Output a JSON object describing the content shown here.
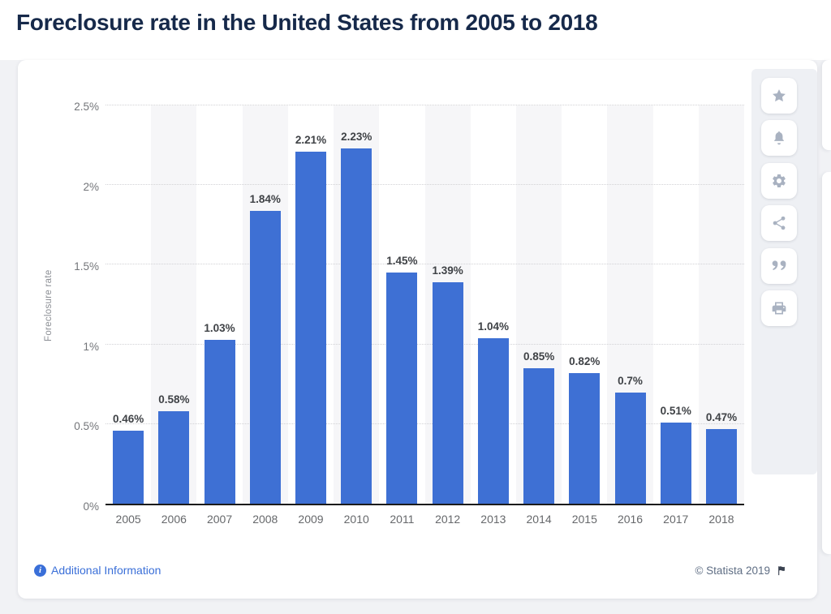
{
  "page": {
    "title": "Foreclosure rate in the United States from 2005 to 2018"
  },
  "chart_data": {
    "type": "bar",
    "title": "Foreclosure rate in the United States from 2005 to 2018",
    "categories": [
      "2005",
      "2006",
      "2007",
      "2008",
      "2009",
      "2010",
      "2011",
      "2012",
      "2013",
      "2014",
      "2015",
      "2016",
      "2017",
      "2018"
    ],
    "values": [
      0.46,
      0.58,
      1.03,
      1.84,
      2.21,
      2.23,
      1.45,
      1.39,
      1.04,
      0.85,
      0.82,
      0.7,
      0.51,
      0.47
    ],
    "value_labels": [
      "0.46%",
      "0.58%",
      "1.03%",
      "1.84%",
      "2.21%",
      "2.23%",
      "1.45%",
      "1.39%",
      "1.04%",
      "0.85%",
      "0.82%",
      "0.7%",
      "0.51%",
      "0.47%"
    ],
    "xlabel": "",
    "ylabel": "Foreclosure rate",
    "ylim": [
      0,
      2.5
    ],
    "yticks": [
      {
        "label": "0%",
        "value": 0
      },
      {
        "label": "0.5%",
        "value": 0.5
      },
      {
        "label": "1%",
        "value": 1
      },
      {
        "label": "1.5%",
        "value": 1.5
      },
      {
        "label": "2%",
        "value": 2
      },
      {
        "label": "2.5%",
        "value": 2.5
      }
    ],
    "grid": "horizontal dotted gridlines, alternating light column stripes starting at 2006",
    "legend": "none",
    "bar_color": "#3e70d4"
  },
  "toolbar": {
    "icons": [
      {
        "name": "star"
      },
      {
        "name": "bell"
      },
      {
        "name": "gear"
      },
      {
        "name": "share"
      },
      {
        "name": "quote"
      },
      {
        "name": "print"
      }
    ]
  },
  "footer": {
    "additional_info_label": "Additional Information",
    "info_icon_glyph": "i",
    "copyright": "© Statista 2019"
  },
  "colors": {
    "bar": "#3e70d4",
    "title": "#16294a",
    "link": "#3a6fd8",
    "copyright_text": "#5f6e84",
    "toolbar_icon": "#a9b2c1",
    "page_background": "#f1f2f5",
    "card_background": "#ffffff",
    "stripe": "#f6f6f8"
  }
}
